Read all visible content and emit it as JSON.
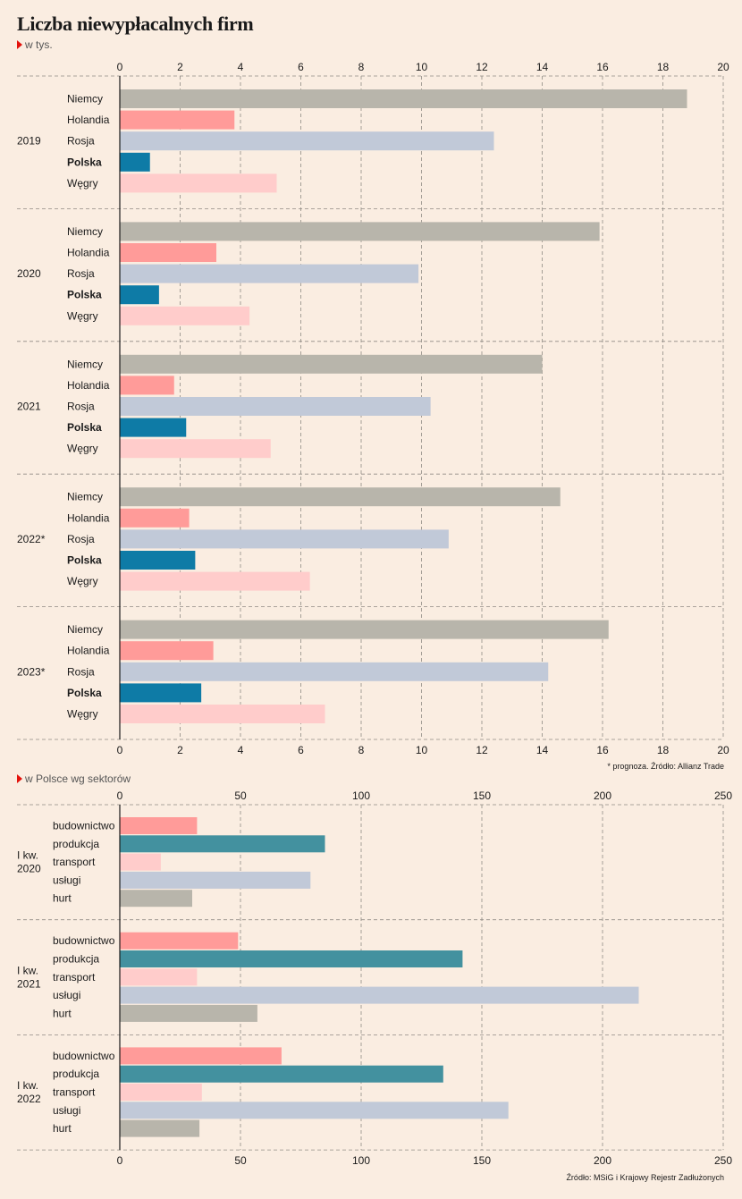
{
  "title": "Liczba niewypłacalnych firm",
  "subtitle1": "w tys.",
  "subtitle2": "w Polsce wg sektorów",
  "note1": "* prognoza. Źródło: Allianz Trade",
  "note2": "Źródło: MSiG i Krajowy Rejestr Zadłużonych",
  "colors": {
    "background": "#faede1",
    "grey": "#b8b5ab",
    "salmon": "#ff9b99",
    "lightblue": "#c1c9d8",
    "blue": "#0e7ba6",
    "pink": "#ffcccb",
    "teal": "#43919f"
  },
  "chart_data": [
    {
      "type": "bar",
      "orientation": "horizontal",
      "title": "Liczba niewypłacalnych firm",
      "unit": "w tys.",
      "xlim": [
        0,
        20
      ],
      "xticks": [
        0,
        2,
        4,
        6,
        8,
        10,
        12,
        14,
        16,
        18,
        20
      ],
      "grid": true,
      "categories": [
        "Niemcy",
        "Holandia",
        "Rosja",
        "Polska",
        "Węgry"
      ],
      "bold_category": "Polska",
      "category_colors": [
        "#b8b5ab",
        "#ff9b99",
        "#c1c9d8",
        "#0e7ba6",
        "#ffcccb"
      ],
      "groups": [
        {
          "label": "2019",
          "values": [
            18.8,
            3.8,
            12.4,
            1.0,
            5.2
          ]
        },
        {
          "label": "2020",
          "values": [
            15.9,
            3.2,
            9.9,
            1.3,
            4.3
          ]
        },
        {
          "label": "2021",
          "values": [
            14.0,
            1.8,
            10.3,
            2.2,
            5.0
          ]
        },
        {
          "label": "2022*",
          "values": [
            14.6,
            2.3,
            10.9,
            2.5,
            6.3
          ]
        },
        {
          "label": "2023*",
          "values": [
            16.2,
            3.1,
            14.2,
            2.7,
            6.8
          ]
        }
      ]
    },
    {
      "type": "bar",
      "orientation": "horizontal",
      "title": "w Polsce wg sektorów",
      "xlim": [
        0,
        250
      ],
      "xticks": [
        0,
        50,
        100,
        150,
        200,
        250
      ],
      "grid": true,
      "categories": [
        "budownictwo",
        "produkcja",
        "transport",
        "usługi",
        "hurt"
      ],
      "category_colors": [
        "#ff9b99",
        "#43919f",
        "#ffcccb",
        "#c1c9d8",
        "#b8b5ab"
      ],
      "groups": [
        {
          "label": [
            "I kw.",
            "2020"
          ],
          "values": [
            32,
            85,
            17,
            79,
            30
          ]
        },
        {
          "label": [
            "I kw.",
            "2021"
          ],
          "values": [
            49,
            142,
            32,
            215,
            57
          ]
        },
        {
          "label": [
            "I kw.",
            "2022"
          ],
          "values": [
            67,
            134,
            34,
            161,
            33
          ]
        }
      ]
    }
  ]
}
